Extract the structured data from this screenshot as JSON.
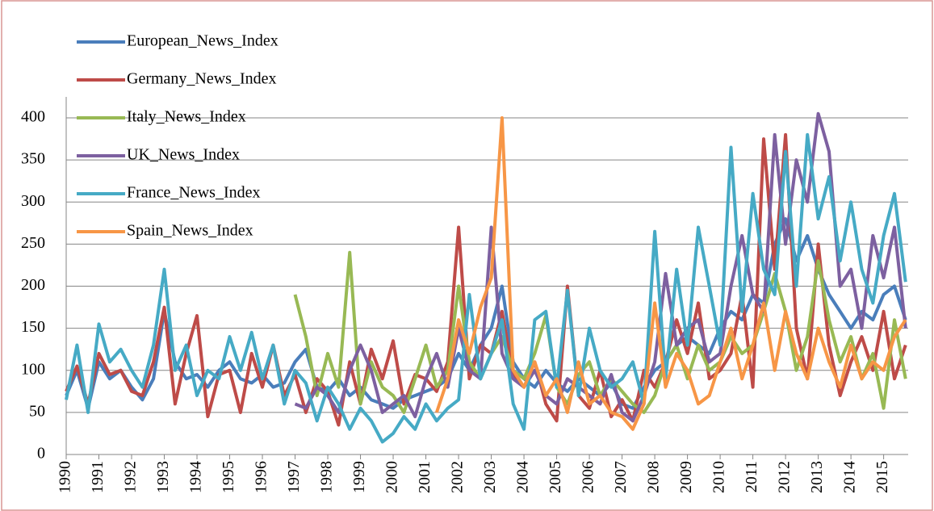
{
  "chart_data": {
    "type": "line",
    "x": [
      1990,
      1990.33,
      1990.67,
      1991,
      1991.33,
      1991.67,
      1992,
      1992.33,
      1992.67,
      1993,
      1993.33,
      1993.67,
      1994,
      1994.33,
      1994.67,
      1995,
      1995.33,
      1995.67,
      1996,
      1996.33,
      1996.67,
      1997,
      1997.33,
      1997.67,
      1998,
      1998.33,
      1998.67,
      1999,
      1999.33,
      1999.67,
      2000,
      2000.33,
      2000.67,
      2001,
      2001.33,
      2001.67,
      2002,
      2002.33,
      2002.67,
      2003,
      2003.33,
      2003.67,
      2004,
      2004.33,
      2004.67,
      2005,
      2005.33,
      2005.67,
      2006,
      2006.33,
      2006.67,
      2007,
      2007.33,
      2007.67,
      2008,
      2008.33,
      2008.67,
      2009,
      2009.33,
      2009.67,
      2010,
      2010.33,
      2010.67,
      2011,
      2011.33,
      2011.67,
      2012,
      2012.33,
      2012.67,
      2013,
      2013.33,
      2013.67,
      2014,
      2014.33,
      2014.67,
      2015,
      2015.33,
      2015.67
    ],
    "series": [
      {
        "name": "European_News_Index",
        "color": "#4a7ebb",
        "values": [
          70,
          100,
          55,
          110,
          90,
          100,
          80,
          65,
          90,
          170,
          110,
          90,
          95,
          80,
          100,
          110,
          90,
          85,
          95,
          80,
          85,
          110,
          125,
          80,
          75,
          90,
          70,
          80,
          65,
          60,
          55,
          65,
          70,
          75,
          80,
          90,
          120,
          100,
          130,
          150,
          200,
          110,
          90,
          80,
          100,
          85,
          75,
          90,
          80,
          70,
          85,
          60,
          55,
          80,
          100,
          110,
          130,
          140,
          130,
          120,
          150,
          170,
          160,
          190,
          180,
          250,
          280,
          230,
          260,
          220,
          190,
          170,
          150,
          170,
          160,
          190,
          200,
          160
        ]
      },
      {
        "name": "Germany_News_Index",
        "color": "#be4b48",
        "values": [
          75,
          105,
          60,
          120,
          95,
          100,
          75,
          70,
          110,
          175,
          60,
          120,
          165,
          45,
          95,
          100,
          50,
          120,
          80,
          130,
          70,
          95,
          50,
          90,
          75,
          35,
          110,
          60,
          125,
          90,
          135,
          60,
          95,
          90,
          75,
          110,
          270,
          90,
          130,
          120,
          170,
          95,
          80,
          110,
          60,
          40,
          200,
          70,
          55,
          100,
          45,
          65,
          40,
          100,
          80,
          110,
          160,
          120,
          180,
          90,
          100,
          120,
          190,
          80,
          375,
          220,
          380,
          150,
          90,
          250,
          130,
          70,
          110,
          140,
          100,
          170,
          90,
          130
        ]
      },
      {
        "name": "Italy_News_Index",
        "color": "#98b954",
        "values": [
          null,
          null,
          null,
          null,
          null,
          null,
          null,
          null,
          null,
          null,
          null,
          null,
          null,
          null,
          null,
          null,
          null,
          null,
          null,
          null,
          null,
          190,
          140,
          70,
          120,
          80,
          240,
          60,
          110,
          80,
          70,
          50,
          90,
          130,
          80,
          100,
          200,
          110,
          90,
          120,
          140,
          100,
          90,
          120,
          165,
          80,
          60,
          95,
          110,
          70,
          90,
          75,
          60,
          50,
          70,
          110,
          130,
          90,
          130,
          100,
          110,
          140,
          120,
          130,
          170,
          215,
          170,
          100,
          140,
          230,
          160,
          110,
          140,
          90,
          120,
          55,
          160,
          90
        ]
      },
      {
        "name": "UK_News_Index",
        "color": "#7d60a0",
        "values": [
          null,
          null,
          null,
          null,
          null,
          null,
          null,
          null,
          null,
          null,
          null,
          null,
          null,
          null,
          null,
          null,
          null,
          null,
          null,
          null,
          null,
          60,
          55,
          80,
          70,
          50,
          100,
          130,
          100,
          50,
          60,
          70,
          45,
          90,
          120,
          80,
          150,
          100,
          90,
          270,
          120,
          90,
          80,
          100,
          70,
          60,
          90,
          80,
          70,
          60,
          95,
          50,
          40,
          70,
          110,
          215,
          130,
          150,
          160,
          110,
          120,
          200,
          260,
          190,
          170,
          380,
          250,
          350,
          300,
          405,
          360,
          200,
          220,
          150,
          260,
          210,
          270,
          150
        ]
      },
      {
        "name": "France_News_Index",
        "color": "#46aac5",
        "values": [
          65,
          130,
          50,
          155,
          110,
          125,
          100,
          80,
          130,
          220,
          100,
          130,
          70,
          100,
          90,
          140,
          100,
          145,
          90,
          130,
          60,
          100,
          85,
          40,
          80,
          60,
          30,
          55,
          40,
          15,
          25,
          45,
          30,
          60,
          40,
          55,
          65,
          190,
          90,
          120,
          160,
          60,
          30,
          160,
          170,
          80,
          195,
          70,
          150,
          100,
          80,
          90,
          110,
          60,
          265,
          90,
          220,
          130,
          270,
          200,
          130,
          365,
          170,
          310,
          220,
          190,
          360,
          200,
          380,
          280,
          330,
          230,
          300,
          220,
          180,
          260,
          310,
          205
        ]
      },
      {
        "name": "Spain_News_Index",
        "color": "#f79646",
        "values": [
          null,
          null,
          null,
          null,
          null,
          null,
          null,
          null,
          null,
          null,
          null,
          null,
          null,
          null,
          null,
          null,
          null,
          null,
          null,
          null,
          null,
          null,
          null,
          null,
          null,
          null,
          null,
          null,
          null,
          null,
          null,
          null,
          null,
          null,
          50,
          90,
          160,
          120,
          175,
          210,
          400,
          100,
          80,
          110,
          70,
          90,
          50,
          110,
          60,
          70,
          50,
          45,
          30,
          60,
          180,
          80,
          120,
          100,
          60,
          70,
          110,
          150,
          90,
          130,
          180,
          100,
          170,
          120,
          90,
          150,
          110,
          80,
          130,
          90,
          110,
          100,
          140,
          160
        ]
      }
    ],
    "xlim": [
      1990,
      2015.75
    ],
    "xticks": [
      1990,
      1991,
      1992,
      1993,
      1994,
      1995,
      1996,
      1997,
      1998,
      1999,
      2000,
      2001,
      2002,
      2003,
      2004,
      2005,
      2006,
      2007,
      2008,
      2009,
      2010,
      2011,
      2012,
      2013,
      2014,
      2015
    ],
    "ylim": [
      0,
      400
    ],
    "yticks": [
      0,
      50,
      100,
      150,
      200,
      250,
      300,
      350,
      400
    ],
    "grid": true
  }
}
